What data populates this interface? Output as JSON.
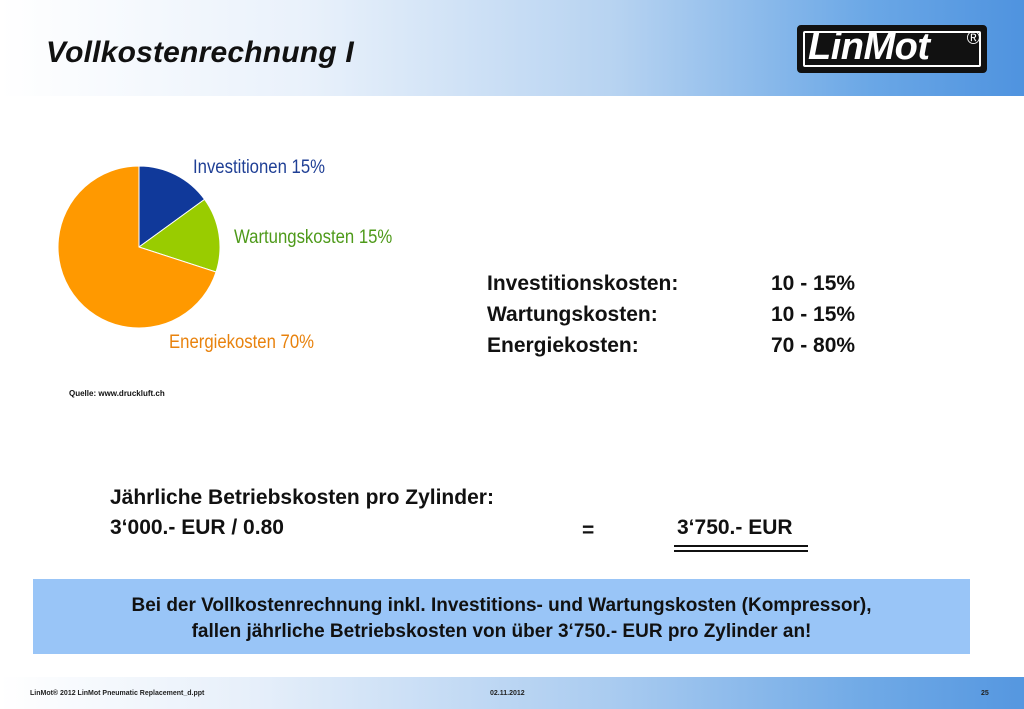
{
  "header": {
    "title": "Vollkostenrechnung I",
    "logo_text": "LinMot",
    "logo_mark": "®"
  },
  "chart_data": {
    "type": "pie",
    "title": "",
    "slices": [
      {
        "label": "Investitionen 15%",
        "value": 15,
        "color": "#10399a",
        "label_color": "#1f3f95"
      },
      {
        "label": "Wartungskosten 15%",
        "value": 15,
        "color": "#99cc00",
        "label_color": "#4e9a1a"
      },
      {
        "label": "Energiekosten 70%",
        "value": 70,
        "color": "#ff9900",
        "label_color": "#e8820d"
      }
    ],
    "source": "Quelle: www.druckluft.ch"
  },
  "cost_table": [
    {
      "name": "Investitionskosten:",
      "value": "10 - 15%"
    },
    {
      "name": "Wartungskosten:",
      "value": "10 - 15%"
    },
    {
      "name": "Energiekosten:",
      "value": "70 - 80%"
    }
  ],
  "calculation": {
    "title": "Jährliche Betriebskosten pro Zylinder:",
    "formula": "3‘000.- EUR / 0.80",
    "equals": "=",
    "result": "3‘750.- EUR"
  },
  "notice": {
    "line1": "Bei der Vollkostenrechnung inkl. Investitions- und Wartungskosten (Kompressor),",
    "line2": "fallen jährliche Betriebskosten von über 3‘750.- EUR pro Zylinder an!"
  },
  "footer": {
    "left": "LinMot®  2012  LinMot Pneumatic Replacement_d.ppt",
    "center": "02.11.2012",
    "page": "25"
  }
}
